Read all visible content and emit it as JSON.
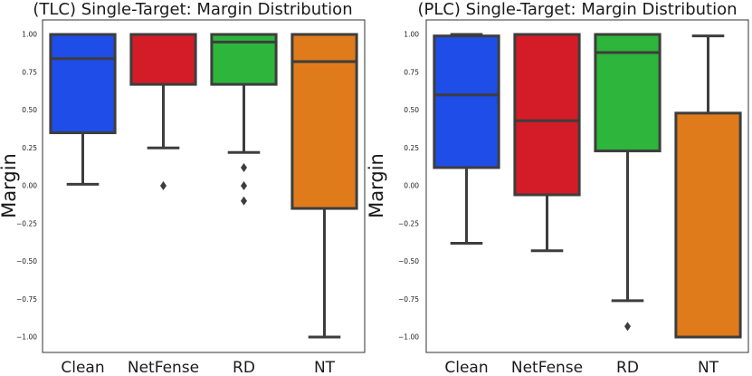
{
  "chart_data": [
    {
      "type": "box",
      "title": "(TLC) Single-Target: Margin Distribution",
      "xlabel": "",
      "ylabel": "Margin",
      "ylim": [
        -1.05,
        1.05
      ],
      "yticks": [
        1.0,
        0.75,
        0.5,
        0.25,
        0.0,
        -0.25,
        -0.5,
        -0.75,
        -1.0
      ],
      "ytick_labels": [
        "1.00",
        "0.75",
        "0.50",
        "0.25",
        "0.00",
        "−0.25",
        "−0.50",
        "−0.75",
        "−1.00"
      ],
      "categories": [
        "Clean",
        "NetFense",
        "RD",
        "NT"
      ],
      "colors": [
        "#1f4de8",
        "#d41c28",
        "#2db53c",
        "#e07b1c"
      ],
      "boxes": [
        {
          "whislo": 0.01,
          "q1": 0.35,
          "med": 0.84,
          "q3": 1.0,
          "whishi": 1.0,
          "fliers": []
        },
        {
          "whislo": 0.25,
          "q1": 0.67,
          "med": 1.0,
          "q3": 1.0,
          "whishi": 1.0,
          "fliers": [
            0.0
          ]
        },
        {
          "whislo": 0.22,
          "q1": 0.67,
          "med": 0.95,
          "q3": 1.0,
          "whishi": 1.0,
          "fliers": [
            0.12,
            0.0,
            -0.1
          ]
        },
        {
          "whislo": -1.0,
          "q1": -0.15,
          "med": 0.82,
          "q3": 1.0,
          "whishi": 1.0,
          "fliers": []
        }
      ]
    },
    {
      "type": "box",
      "title": "(PLC) Single-Target: Margin Distribution",
      "xlabel": "",
      "ylabel": "Margin",
      "ylim": [
        -1.05,
        1.05
      ],
      "yticks": [
        1.0,
        0.75,
        0.5,
        0.25,
        0.0,
        -0.25,
        -0.5,
        -0.75,
        -1.0
      ],
      "ytick_labels": [
        "1.00",
        "0.75",
        "0.50",
        "0.25",
        "0.00",
        "−0.25",
        "−0.50",
        "−0.75",
        "−1.00"
      ],
      "categories": [
        "Clean",
        "NetFense",
        "RD",
        "NT"
      ],
      "colors": [
        "#1f4de8",
        "#d41c28",
        "#2db53c",
        "#e07b1c"
      ],
      "boxes": [
        {
          "whislo": -0.38,
          "q1": 0.12,
          "med": 0.6,
          "q3": 0.99,
          "whishi": 1.0,
          "fliers": []
        },
        {
          "whislo": -0.43,
          "q1": -0.06,
          "med": 0.43,
          "q3": 1.0,
          "whishi": 1.0,
          "fliers": []
        },
        {
          "whislo": -0.76,
          "q1": 0.23,
          "med": 0.88,
          "q3": 1.0,
          "whishi": 1.0,
          "fliers": [
            -0.93
          ]
        },
        {
          "whislo": -1.0,
          "q1": -1.0,
          "med": -1.0,
          "q3": 0.48,
          "whishi": 0.99,
          "fliers": []
        }
      ]
    }
  ]
}
